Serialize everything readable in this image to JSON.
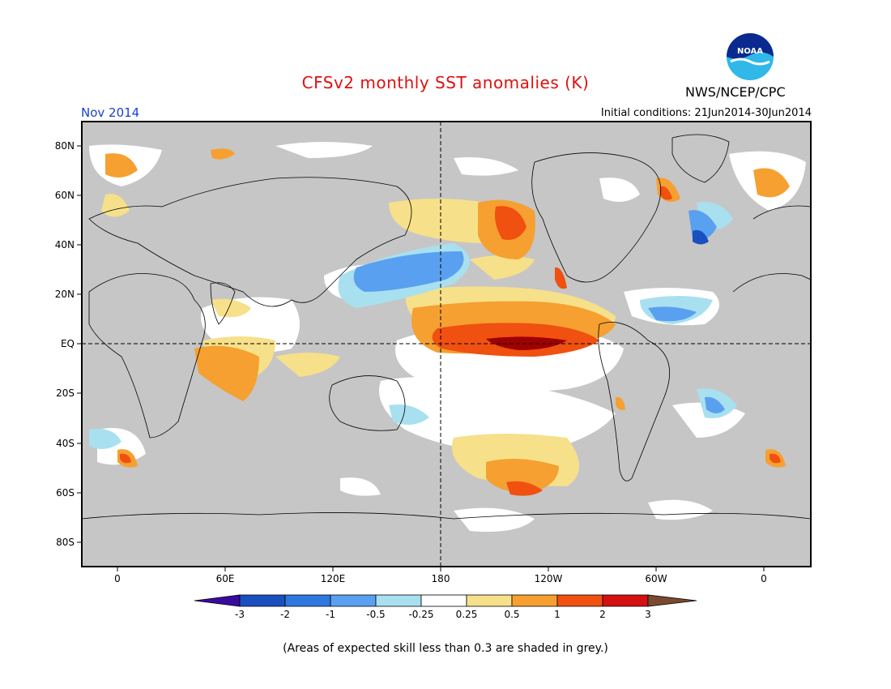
{
  "header": {
    "title": "CFSv2 monthly SST anomalies (K)",
    "month": "Nov 2014",
    "initial_conditions": "Initial conditions: 21Jun2014-30Jun2014",
    "agency": "NWS/NCEP/CPC",
    "logo_text": "NOAA"
  },
  "axes": {
    "lat_labels": [
      "80N",
      "60N",
      "40N",
      "20N",
      "EQ",
      "20S",
      "40S",
      "60S",
      "80S"
    ],
    "lon_labels": [
      "0",
      "60E",
      "120E",
      "180",
      "120W",
      "60W",
      "0"
    ]
  },
  "colorbar": {
    "tick_labels": [
      "-3",
      "-2",
      "-1",
      "-0.5",
      "-0.25",
      "0.25",
      "0.5",
      "1",
      "2",
      "3"
    ],
    "colors": [
      "#3a0aa0",
      "#1a4fc0",
      "#2f78e0",
      "#5aa0f0",
      "#a8e0f0",
      "#ffffff",
      "#f7e08a",
      "#f5a030",
      "#f05010",
      "#d41010",
      "#a00000",
      "#7a4a30"
    ]
  },
  "footnote": "(Areas of expected skill less than 0.3 are shaded in grey.)",
  "colors": {
    "grey_shading": "#c6c6c6",
    "land": "#ffffff",
    "title": "#e01010",
    "month": "#1a3fd0"
  }
}
